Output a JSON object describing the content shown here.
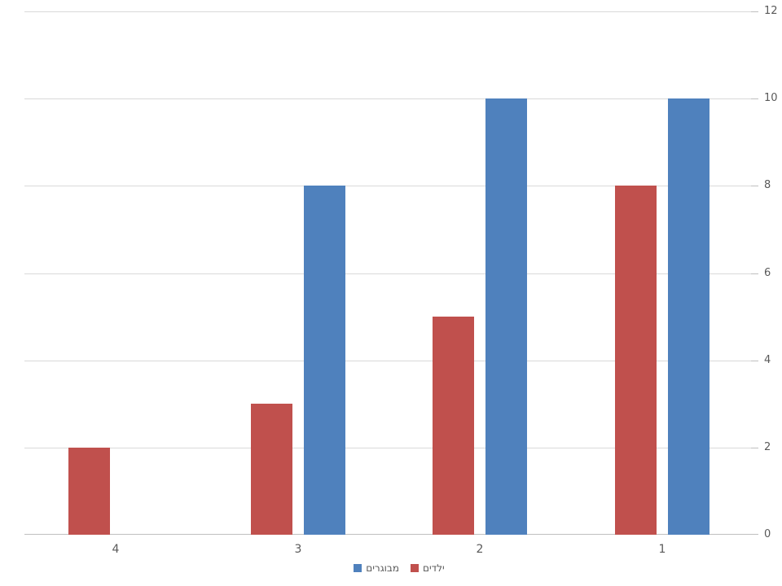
{
  "chart_data": {
    "type": "bar",
    "direction": "rtl",
    "title": "",
    "categories": [
      "4",
      "3",
      "2",
      "1"
    ],
    "series": [
      {
        "key": "children",
        "name": "ילדים",
        "color": "#C0504D",
        "values": [
          2,
          3,
          5,
          8
        ]
      },
      {
        "key": "adults",
        "name": "מבוגרים",
        "color": "#4F81BD",
        "values": [
          0,
          8,
          10,
          10
        ]
      }
    ],
    "legend": [
      {
        "key": "adults",
        "label": "מבוגרים",
        "color": "#4F81BD"
      },
      {
        "key": "children",
        "label": "ילדים",
        "color": "#C0504D"
      }
    ],
    "ylim": [
      0,
      12
    ],
    "yticks": [
      0,
      2,
      4,
      6,
      8,
      10,
      12
    ],
    "y_axis_side": "right",
    "legend_position": "bottom",
    "grid": true,
    "colors": {
      "gridline": "#D9D9D9",
      "axis_line": "#BFBFBF",
      "tick_label": "#595959",
      "background": "#FFFFFF"
    }
  }
}
